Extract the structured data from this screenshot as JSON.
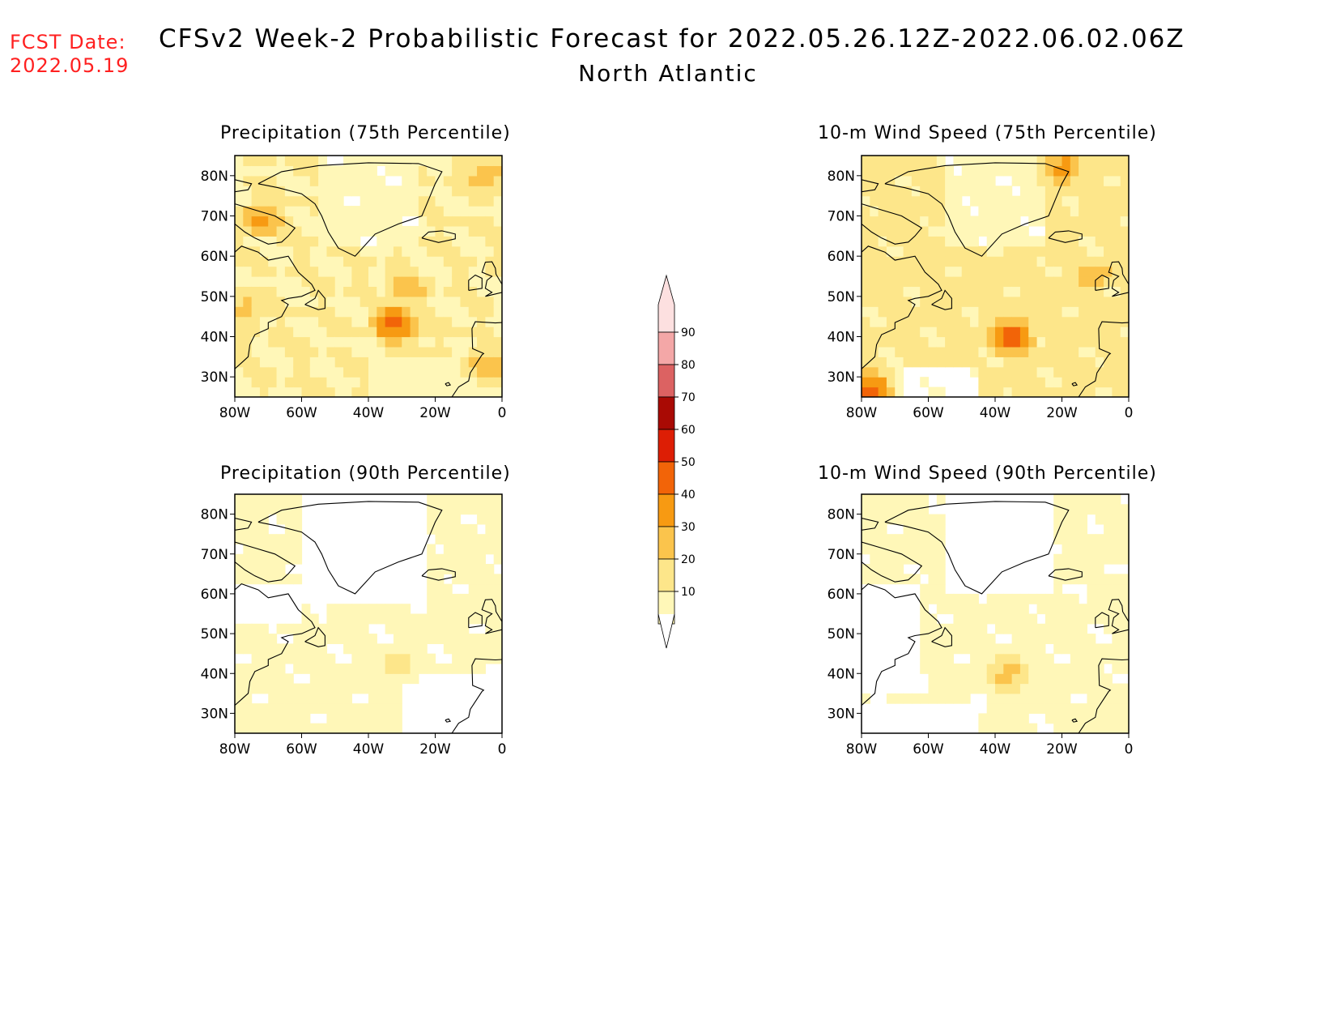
{
  "header": {
    "fcst_label": "FCST Date:",
    "fcst_date": "2022.05.19",
    "title": "CFSv2 Week-2 Probabilistic Forecast for 2022.05.26.12Z-2022.06.02.06Z",
    "subtitle": "North Atlantic"
  },
  "panels": [
    {
      "title": "Precipitation (75th Percentile)",
      "field": "precip",
      "percentile": 75
    },
    {
      "title": "10-m Wind Speed (75th Percentile)",
      "field": "wind",
      "percentile": 75
    },
    {
      "title": "Precipitation (90th Percentile)",
      "field": "precip",
      "percentile": 90
    },
    {
      "title": "10-m Wind Speed (90th Percentile)",
      "field": "wind",
      "percentile": 90
    }
  ],
  "axes": {
    "lat_ticks": [
      "80N",
      "70N",
      "60N",
      "50N",
      "40N",
      "30N"
    ],
    "lon_ticks": [
      "80W",
      "60W",
      "40W",
      "20W",
      "0"
    ],
    "lat_range": [
      25,
      85
    ],
    "lon_range": [
      -80,
      0
    ]
  },
  "colorbar": {
    "levels": [
      10,
      20,
      30,
      40,
      50,
      60,
      70,
      80,
      90
    ],
    "labels": [
      "10",
      "20",
      "30",
      "40",
      "50",
      "60",
      "70",
      "80",
      "90"
    ],
    "colors": [
      "#fff7b8",
      "#fde68a",
      "#fbc44c",
      "#f79a12",
      "#f26408",
      "#dd1e05",
      "#a90a04",
      "#dc6262",
      "#f4a7a7",
      "#fde0e0"
    ]
  },
  "chart_data": {
    "type": "heatmap",
    "units": "probability (%)",
    "blobs": [
      {
        "panel": 0,
        "lon": -32,
        "lat": 43,
        "peak": 55
      },
      {
        "panel": 0,
        "lon": -28,
        "lat": 52,
        "peak": 38
      },
      {
        "panel": 0,
        "lon": -72,
        "lat": 69,
        "peak": 45
      },
      {
        "panel": 0,
        "lon": -5,
        "lat": 80,
        "peak": 38
      },
      {
        "panel": 0,
        "lon": -77,
        "lat": 47,
        "peak": 35
      },
      {
        "panel": 0,
        "lon": -5,
        "lat": 33,
        "peak": 38
      },
      {
        "panel": 1,
        "lon": -35,
        "lat": 40,
        "peak": 55
      },
      {
        "panel": 1,
        "lon": -20,
        "lat": 82,
        "peak": 45
      },
      {
        "panel": 1,
        "lon": -78,
        "lat": 27,
        "peak": 55
      },
      {
        "panel": 1,
        "lon": -10,
        "lat": 55,
        "peak": 38
      },
      {
        "panel": 2,
        "lon": -32,
        "lat": 42,
        "peak": 25
      },
      {
        "panel": 3,
        "lon": -36,
        "lat": 40,
        "peak": 35
      }
    ]
  }
}
